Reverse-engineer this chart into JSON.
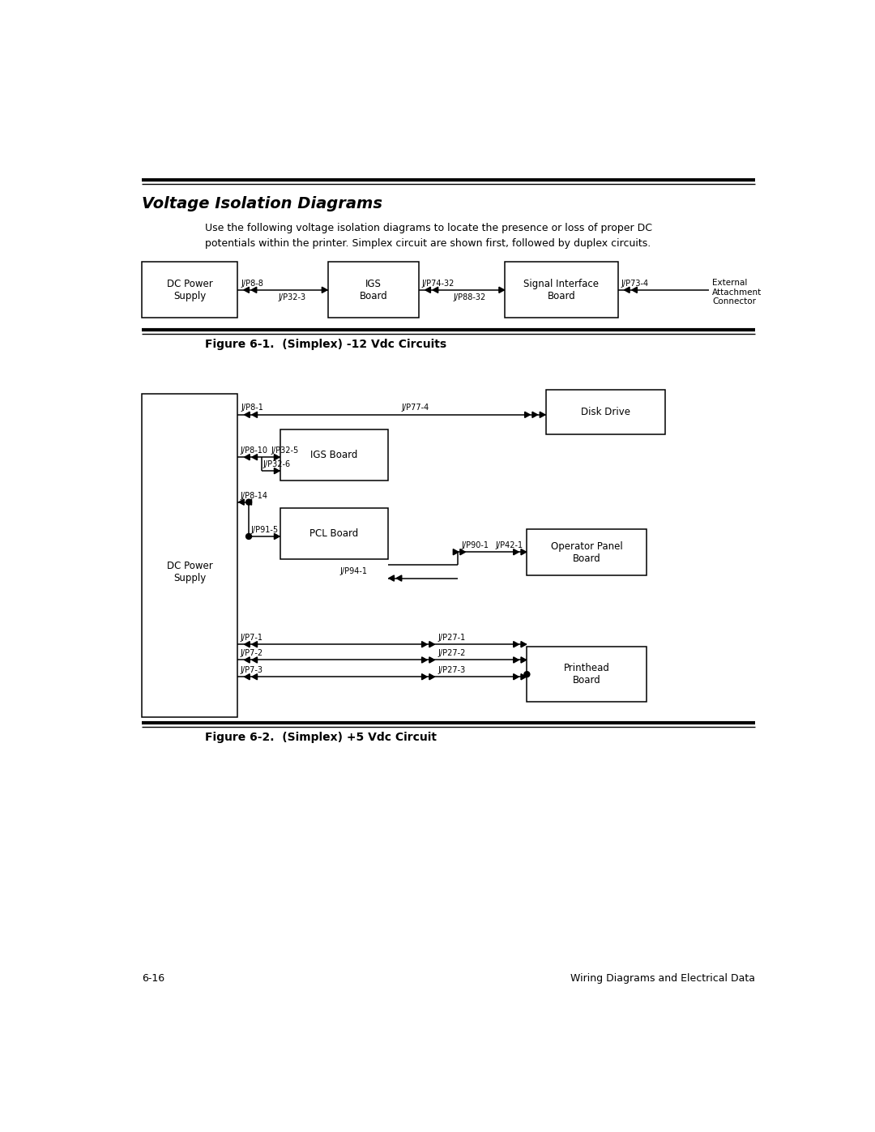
{
  "bg_color": "#ffffff",
  "page_width": 10.8,
  "page_height": 13.97,
  "title": "Voltage Isolation Diagrams",
  "subtitle": "Use the following voltage isolation diagrams to locate the presence or loss of proper DC\npotentials within the printer. Simplex circuit are shown first, followed by duplex circuits.",
  "fig1_caption": "Figure 6-1.  (Simplex) -12 Vdc Circuits",
  "fig2_caption": "Figure 6-2.  (Simplex) +5 Vdc Circuit",
  "footer_left": "6-16",
  "footer_right": "Wiring Diagrams and Electrical Data"
}
